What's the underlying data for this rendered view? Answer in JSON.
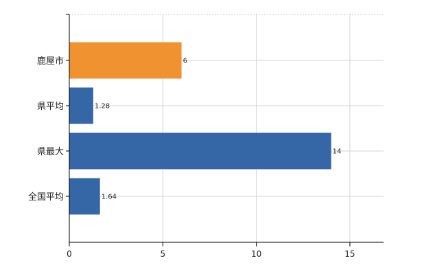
{
  "chart_data": {
    "type": "bar",
    "orientation": "horizontal",
    "categories": [
      "鹿屋市",
      "県平均",
      "県最大",
      "全国平均"
    ],
    "values": [
      6,
      1.28,
      14,
      1.64
    ],
    "data_labels": [
      "6",
      "1.28",
      "14",
      "1.64"
    ],
    "bar_colors": [
      "#F0922F",
      "#3567A6",
      "#3567A6",
      "#3567A6"
    ],
    "xlim": [
      0,
      16.8
    ],
    "x_ticks": [
      0,
      5,
      10,
      15
    ],
    "x_tick_labels": [
      "0",
      "5",
      "10",
      "15"
    ],
    "grid": true,
    "legend": "none",
    "title": "",
    "xlabel": "",
    "ylabel": ""
  }
}
